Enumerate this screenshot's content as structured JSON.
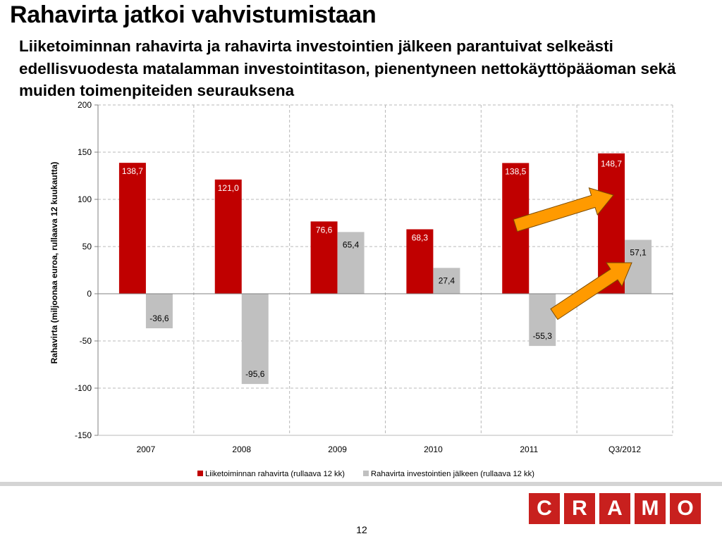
{
  "slide": {
    "title": "Rahavirta jatkoi vahvistumistaan",
    "subtitle": "Liiketoiminnan rahavirta ja rahavirta investointien jälkeen parantuivat selkeästi edellisvuodesta matalamman investointitason, pienentyneen nettokäyttöpääoman sekä muiden toimenpiteiden seurauksena",
    "page_number": "12",
    "logo_letters": [
      "C",
      "R",
      "A",
      "M",
      "O"
    ]
  },
  "chart_data": {
    "type": "bar",
    "categories": [
      "2007",
      "2008",
      "2009",
      "2010",
      "2011",
      "Q3/2012"
    ],
    "series": [
      {
        "name": "Liiketoiminnan rahavirta (rullaava 12 kk)",
        "values": [
          138.7,
          121.0,
          76.6,
          68.3,
          138.5,
          148.7
        ],
        "labels": [
          "138,7",
          "121,0",
          "76,6",
          "68,3",
          "138,5",
          "148,7"
        ],
        "color": "#c00000"
      },
      {
        "name": "Rahavirta investointien jälkeen (rullaava 12 kk)",
        "values": [
          -36.6,
          -95.6,
          65.4,
          27.4,
          -55.3,
          57.1
        ],
        "labels": [
          "-36,6",
          "-95,6",
          "65,4",
          "27,4",
          "-55,3",
          "57,1"
        ],
        "color": "#c0c0c0"
      }
    ],
    "ylabel": "Rahavirta (miljoonaa euroa, rullaava 12 kuukautta)",
    "xlabel": "",
    "ylim": [
      -150,
      200
    ],
    "yticks": [
      200,
      150,
      100,
      50,
      0,
      -50,
      -100,
      -150
    ],
    "grid": true,
    "legend": "bottom",
    "annotations": {
      "arrows_color": "#ff9a00",
      "arrows": [
        "to-series-1-Q3/2012",
        "to-series-2-Q3/2012"
      ]
    }
  }
}
